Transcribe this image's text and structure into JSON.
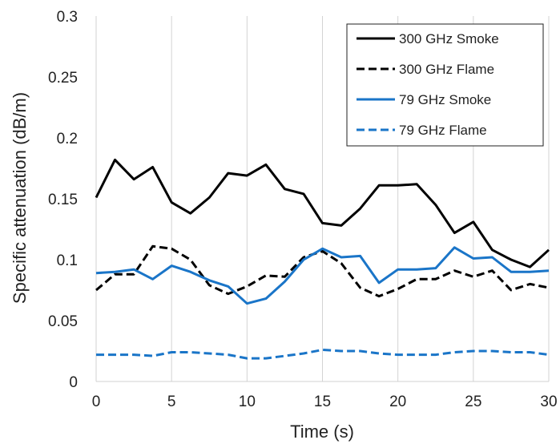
{
  "chart_data": {
    "type": "line",
    "title": "",
    "xlabel": "Time (s)",
    "ylabel": "Specific attenuation (dB/m)",
    "xlim": [
      0,
      30
    ],
    "ylim": [
      0,
      0.3
    ],
    "x_ticks": [
      "0",
      "5",
      "10",
      "15",
      "20",
      "25",
      "30"
    ],
    "y_ticks": [
      "0",
      "0.05",
      "0.1",
      "0.15",
      "0.2",
      "0.25",
      "0.3"
    ],
    "grid": "vertical",
    "legend_position": "top-right",
    "x": [
      0,
      1.25,
      2.5,
      3.75,
      5,
      6.25,
      7.5,
      8.75,
      10,
      11.25,
      12.5,
      13.75,
      15,
      16.25,
      17.5,
      18.75,
      20,
      21.25,
      22.5,
      23.75,
      25,
      26.25,
      27.5,
      28.75,
      30
    ],
    "series": [
      {
        "name": "300 GHz Smoke",
        "color": "#000000",
        "dash": "solid",
        "values": [
          0.151,
          0.182,
          0.166,
          0.176,
          0.147,
          0.138,
          0.151,
          0.171,
          0.169,
          0.178,
          0.158,
          0.154,
          0.13,
          0.128,
          0.142,
          0.161,
          0.161,
          0.162,
          0.145,
          0.122,
          0.131,
          0.108,
          0.1,
          0.094,
          0.108
        ]
      },
      {
        "name": "300 GHz Flame",
        "color": "#000000",
        "dash": "dashed",
        "values": [
          0.075,
          0.088,
          0.088,
          0.111,
          0.109,
          0.1,
          0.079,
          0.072,
          0.078,
          0.087,
          0.086,
          0.102,
          0.107,
          0.097,
          0.077,
          0.07,
          0.076,
          0.084,
          0.084,
          0.091,
          0.086,
          0.091,
          0.075,
          0.08,
          0.077
        ]
      },
      {
        "name": "79 GHz Smoke",
        "color": "#1a75c8",
        "dash": "solid",
        "values": [
          0.089,
          0.09,
          0.092,
          0.084,
          0.095,
          0.09,
          0.083,
          0.078,
          0.064,
          0.068,
          0.082,
          0.1,
          0.109,
          0.102,
          0.103,
          0.081,
          0.092,
          0.092,
          0.093,
          0.11,
          0.101,
          0.102,
          0.09,
          0.09,
          0.091
        ]
      },
      {
        "name": "79 GHz Flame",
        "color": "#1a75c8",
        "dash": "dashed",
        "values": [
          0.022,
          0.022,
          0.022,
          0.021,
          0.024,
          0.024,
          0.023,
          0.022,
          0.019,
          0.019,
          0.021,
          0.023,
          0.026,
          0.025,
          0.025,
          0.023,
          0.022,
          0.022,
          0.022,
          0.024,
          0.025,
          0.025,
          0.024,
          0.024,
          0.022
        ]
      }
    ]
  }
}
